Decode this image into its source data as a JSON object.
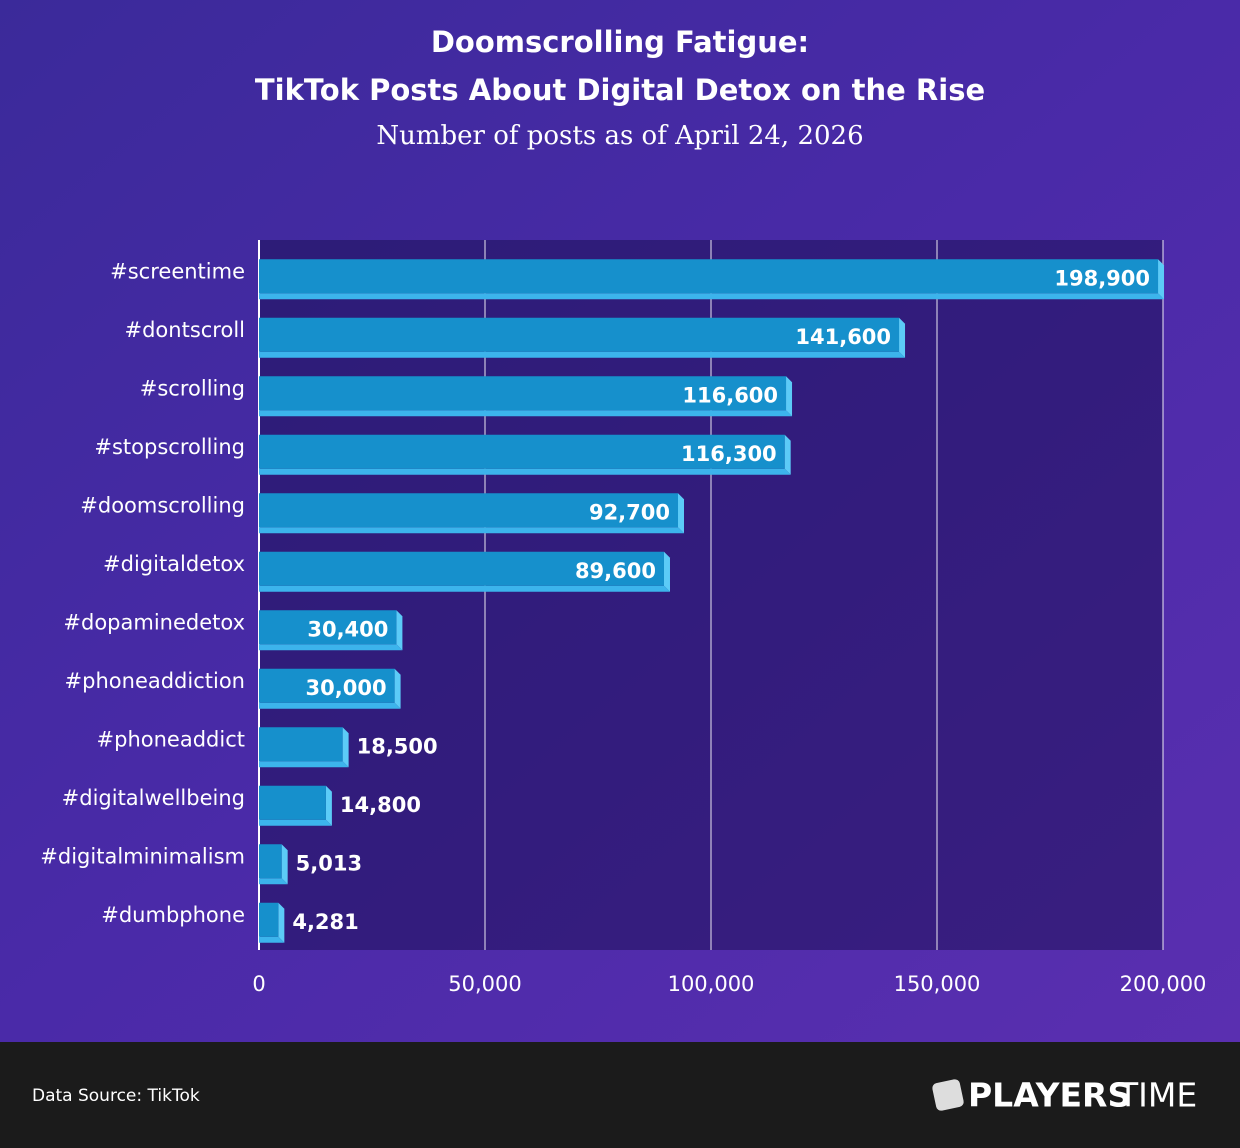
{
  "chart_data": {
    "type": "bar",
    "orientation": "horizontal",
    "title": [
      "Doomscrolling Fatigue:",
      "TikTok Posts About Digital Detox on the Rise"
    ],
    "subtitle": "Number of posts as of April 24, 2026",
    "categories": [
      "#screentime",
      "#dontscroll",
      "#scrolling",
      "#stopscrolling",
      "#doomscrolling",
      "#digitaldetox",
      "#dopaminedetox",
      "#phoneaddiction",
      "#phoneaddict",
      "#digitalwellbeing",
      "#digitalminimalism",
      "#dumbphone"
    ],
    "values": [
      198900,
      141600,
      116600,
      116300,
      92700,
      89600,
      30400,
      30000,
      18500,
      14800,
      5013,
      4281
    ],
    "value_labels": [
      "198,900",
      "141,600",
      "116,600",
      "116,300",
      "92,700",
      "89,600",
      "30,400",
      "30,000",
      "18,500",
      "14,800",
      "5,013",
      "4,281"
    ],
    "color": "#1690cc",
    "xlim": [
      0,
      200000
    ],
    "xticks": [
      0,
      {
        "value": 50000,
        "label": "50,000"
      },
      {
        "value": 100000,
        "label": "100,000"
      },
      {
        "value": 150000,
        "label": "150,000"
      },
      {
        "value": 200000,
        "label": "200,000"
      }
    ],
    "grid": true
  },
  "footer": {
    "source": "Data Source: TikTok",
    "brand": [
      "PLAYERS",
      "TIME"
    ]
  }
}
